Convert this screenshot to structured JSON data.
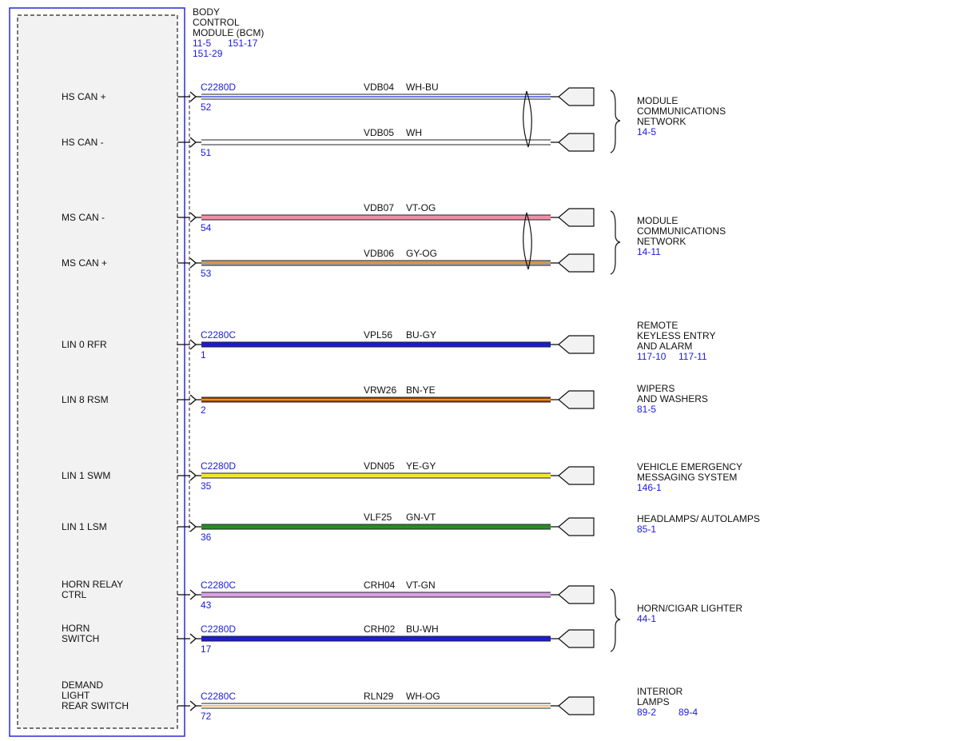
{
  "module": {
    "name_lines": [
      "BODY",
      "CONTROL",
      "MODULE (BCM)"
    ],
    "refs_line1": [
      "11-5",
      "151-17"
    ],
    "refs_line2": [
      "151-29"
    ]
  },
  "colors": {
    "WH-BU": [
      "#ffffff",
      "#3a52e0"
    ],
    "WH": [
      "#ffffff",
      "#ffffff"
    ],
    "VT-OG": [
      "#f18fa8",
      "#f18fa8"
    ],
    "GY-OG": [
      "#a9a9a9",
      "#e8890c"
    ],
    "BU-GY": [
      "#1c1cd6",
      "#1c1cd6"
    ],
    "BN-YE": [
      "#9a3c10",
      "#f0c000"
    ],
    "YE-GY": [
      "#f1ea2a",
      "#f1ea2a"
    ],
    "GN-VT": [
      "#2a8a2a",
      "#2a8a2a"
    ],
    "VT-GN": [
      "#d9a0e6",
      "#d9a0e6"
    ],
    "BU-WH": [
      "#1c1cd6",
      "#1c1cd6"
    ],
    "WH-OG": [
      "#ffffff",
      "#e8b040"
    ]
  },
  "circuits": [
    {
      "pin_label": [
        "HS CAN +"
      ],
      "connector": "C2280D",
      "pin": "52",
      "circuit": "VDB04",
      "color": "WH-BU"
    },
    {
      "pin_label": [
        "HS CAN -"
      ],
      "connector": "",
      "pin": "51",
      "circuit": "VDB05",
      "color": "WH"
    },
    {
      "pin_label": [
        "MS CAN -"
      ],
      "connector": "",
      "pin": "54",
      "circuit": "VDB07",
      "color": "VT-OG"
    },
    {
      "pin_label": [
        "MS CAN +"
      ],
      "connector": "",
      "pin": "53",
      "circuit": "VDB06",
      "color": "GY-OG"
    },
    {
      "pin_label": [
        "LIN 0 RFR"
      ],
      "connector": "C2280C",
      "pin": "1",
      "circuit": "VPL56",
      "color": "BU-GY"
    },
    {
      "pin_label": [
        "LIN 8 RSM"
      ],
      "connector": "",
      "pin": "2",
      "circuit": "VRW26",
      "color": "BN-YE"
    },
    {
      "pin_label": [
        "LIN 1 SWM"
      ],
      "connector": "C2280D",
      "pin": "35",
      "circuit": "VDN05",
      "color": "YE-GY"
    },
    {
      "pin_label": [
        "LIN 1 LSM"
      ],
      "connector": "",
      "pin": "36",
      "circuit": "VLF25",
      "color": "GN-VT"
    },
    {
      "pin_label": [
        "HORN RELAY",
        "CTRL"
      ],
      "connector": "C2280C",
      "pin": "43",
      "circuit": "CRH04",
      "color": "VT-GN"
    },
    {
      "pin_label": [
        "HORN",
        "SWITCH"
      ],
      "connector": "C2280D",
      "pin": "17",
      "circuit": "CRH02",
      "color": "BU-WH"
    },
    {
      "pin_label": [
        "DEMAND",
        "LIGHT",
        "REAR SWITCH"
      ],
      "connector": "C2280C",
      "pin": "72",
      "circuit": "RLN29",
      "color": "WH-OG"
    }
  ],
  "destinations": [
    {
      "lines": [
        "MODULE",
        "COMMUNICATIONS",
        "NETWORK"
      ],
      "refs": [
        "14-5"
      ]
    },
    {
      "lines": [
        "MODULE",
        "COMMUNICATIONS",
        "NETWORK"
      ],
      "refs": [
        "14-11"
      ]
    },
    {
      "lines": [
        "REMOTE",
        "KEYLESS ENTRY",
        "AND ALARM"
      ],
      "refs": [
        "117-10",
        "117-11"
      ]
    },
    {
      "lines": [
        "WIPERS",
        "AND WASHERS"
      ],
      "refs": [
        "81-5"
      ]
    },
    {
      "lines": [
        "VEHICLE EMERGENCY",
        "MESSAGING SYSTEM"
      ],
      "refs": [
        "146-1"
      ]
    },
    {
      "lines": [
        "HEADLAMPS/ AUTOLAMPS"
      ],
      "refs": [
        "85-1"
      ]
    },
    {
      "lines": [
        "HORN/CIGAR LIGHTER"
      ],
      "refs": [
        "44-1"
      ]
    },
    {
      "lines": [
        "INTERIOR",
        "LAMPS"
      ],
      "refs": [
        "89-2",
        "89-4"
      ]
    }
  ]
}
